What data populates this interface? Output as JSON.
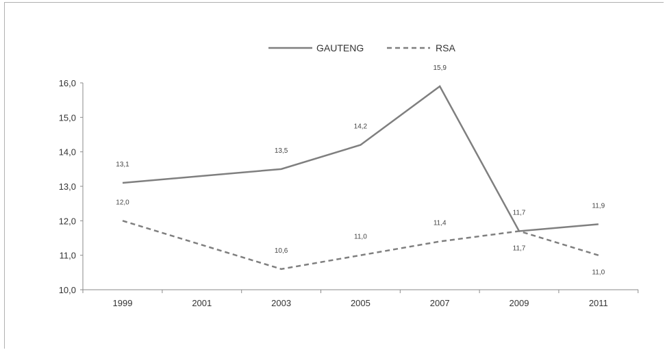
{
  "chart_data": {
    "type": "line",
    "title": "",
    "xlabel": "",
    "ylabel": "",
    "x": [
      "1999",
      "2001",
      "2003",
      "2005",
      "2007",
      "2009",
      "2011"
    ],
    "ylim": [
      10.0,
      16.0
    ],
    "yticks": [
      "10,0",
      "11,0",
      "12,0",
      "13,0",
      "14,0",
      "15,0",
      "16,0"
    ],
    "grid": false,
    "legend_position": "top-center",
    "series": [
      {
        "name": "GAUTENG",
        "style": "solid",
        "color": "#7f7f7f",
        "points": [
          {
            "x": 1999,
            "y": 13.1,
            "label": "13,1"
          },
          {
            "x": 2003,
            "y": 13.5,
            "label": "13,5"
          },
          {
            "x": 2005,
            "y": 14.2,
            "label": "14,2"
          },
          {
            "x": 2007,
            "y": 15.9,
            "label": "15,9"
          },
          {
            "x": 2009,
            "y": 11.7,
            "label": "11,7"
          },
          {
            "x": 2011,
            "y": 11.9,
            "label": "11,9"
          }
        ]
      },
      {
        "name": "RSA",
        "style": "dashed",
        "color": "#7f7f7f",
        "points": [
          {
            "x": 1999,
            "y": 12.0,
            "label": "12,0"
          },
          {
            "x": 2003,
            "y": 10.6,
            "label": "10,6"
          },
          {
            "x": 2005,
            "y": 11.0,
            "label": "11,0"
          },
          {
            "x": 2007,
            "y": 11.4,
            "label": "11,4"
          },
          {
            "x": 2009,
            "y": 11.7,
            "label": "11,7"
          },
          {
            "x": 2011,
            "y": 11.0,
            "label": "11,0"
          }
        ]
      }
    ]
  }
}
